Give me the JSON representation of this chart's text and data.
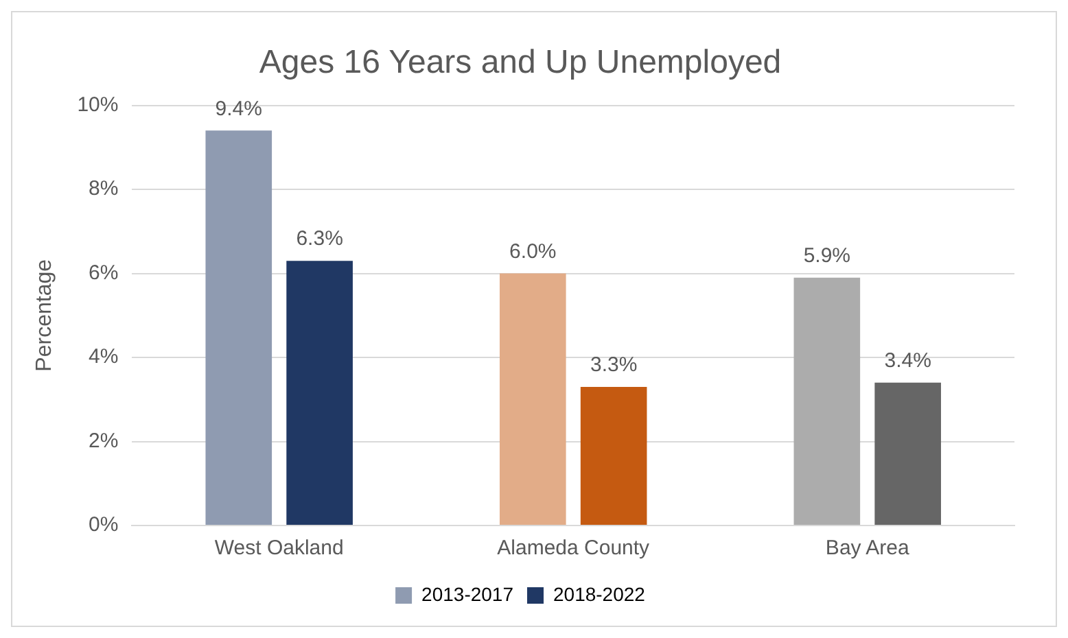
{
  "chart_data": {
    "type": "bar",
    "title": "Ages 16 Years and Up Unemployed",
    "ylabel": "Percentage",
    "categories": [
      "West Oakland",
      "Alameda County",
      "Bay Area"
    ],
    "series": [
      {
        "name": "2013-2017",
        "colors": [
          "#8f9bb1",
          "#e2ac88",
          "#acacac"
        ],
        "values": [
          9.4,
          6.0,
          5.9
        ],
        "value_labels": [
          "9.4%",
          "6.0%",
          "5.9%"
        ]
      },
      {
        "name": "2018-2022",
        "colors": [
          "#203864",
          "#c55a11",
          "#666666"
        ],
        "values": [
          6.3,
          3.3,
          3.4
        ],
        "value_labels": [
          "6.3%",
          "3.3%",
          "3.4%"
        ]
      }
    ],
    "ylim": [
      0,
      10
    ],
    "yticks": [
      {
        "value": 0,
        "label": "0%"
      },
      {
        "value": 2,
        "label": "2%"
      },
      {
        "value": 4,
        "label": "4%"
      },
      {
        "value": 6,
        "label": "6%"
      },
      {
        "value": 8,
        "label": "8%"
      },
      {
        "value": 10,
        "label": "10%"
      }
    ],
    "grid": "y",
    "legend": "bottom"
  }
}
